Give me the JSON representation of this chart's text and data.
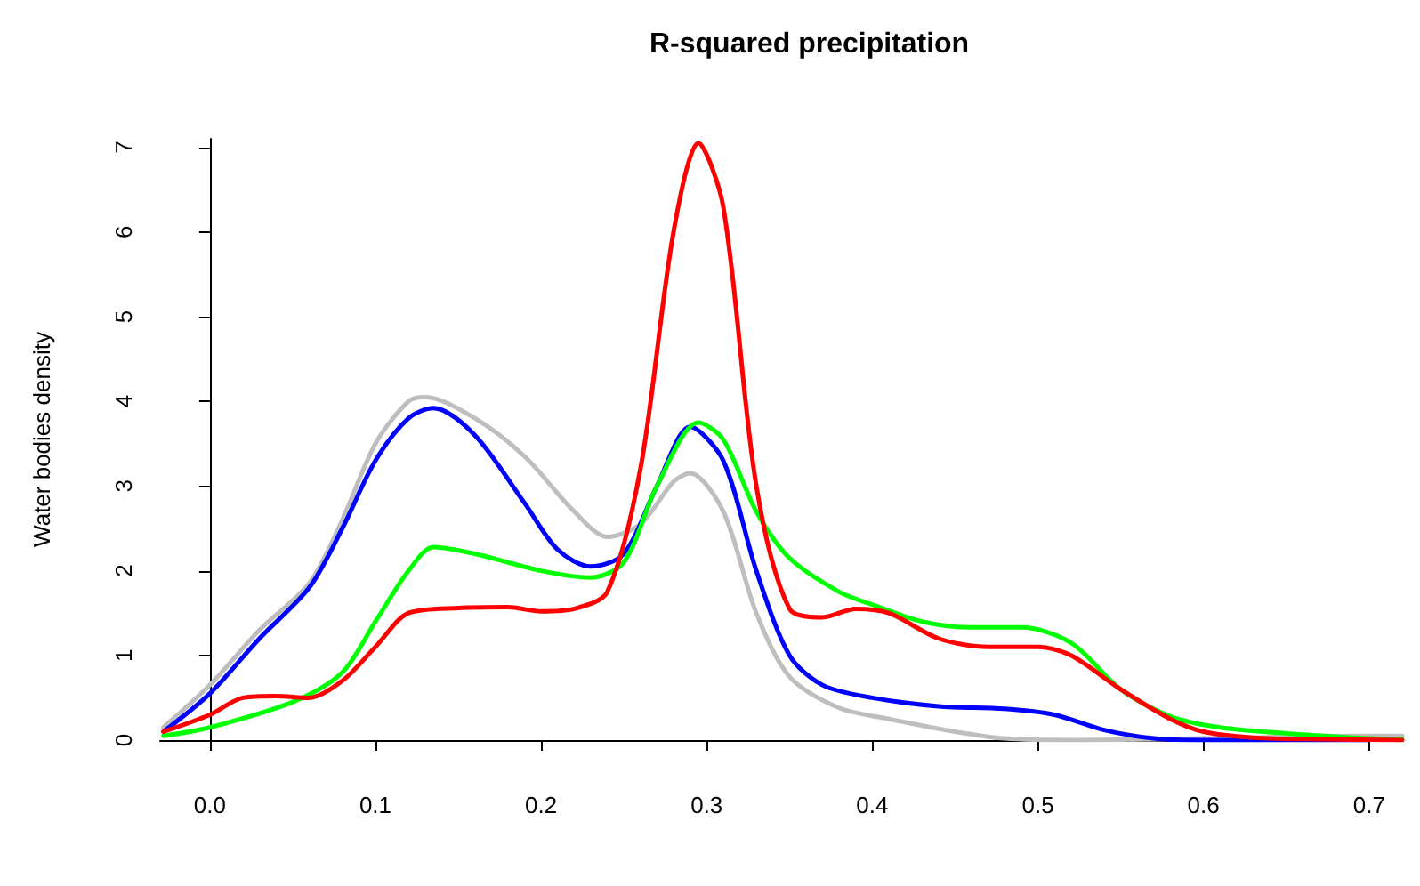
{
  "chart_data": {
    "type": "line",
    "title": "R-squared precipitation",
    "ylabel": "Water bodies density",
    "xlim": [
      -0.03,
      0.72
    ],
    "xticks": [
      {
        "value": 0,
        "label": "0.0"
      },
      0.1,
      0.2,
      0.3,
      0.4,
      0.5,
      0.6,
      0.7
    ],
    "ylim": [
      0,
      7.1
    ],
    "yticks": [
      0,
      1,
      2,
      3,
      4,
      5,
      6,
      7
    ],
    "marker": "none",
    "line_style": "solid",
    "series": [
      {
        "color": "#bebebe",
        "x": [
          -0.028,
          0.0,
          0.03,
          0.06,
          0.08,
          0.1,
          0.12,
          0.13,
          0.16,
          0.19,
          0.22,
          0.24,
          0.26,
          0.28,
          0.29,
          0.31,
          0.33,
          0.35,
          0.38,
          0.41,
          0.45,
          0.48,
          0.52,
          0.6,
          0.7,
          0.72
        ],
        "values": [
          0.15,
          0.65,
          1.3,
          1.85,
          2.6,
          3.5,
          4.0,
          4.05,
          3.8,
          3.35,
          2.7,
          2.4,
          2.55,
          3.05,
          3.15,
          2.7,
          1.5,
          0.75,
          0.38,
          0.25,
          0.1,
          0.02,
          0.0,
          0.02,
          0.05,
          0.05
        ]
      },
      {
        "color": "#0000ff",
        "x": [
          -0.028,
          0.0,
          0.03,
          0.06,
          0.08,
          0.1,
          0.12,
          0.135,
          0.16,
          0.19,
          0.21,
          0.23,
          0.25,
          0.27,
          0.29,
          0.31,
          0.33,
          0.35,
          0.37,
          0.4,
          0.44,
          0.48,
          0.51,
          0.54,
          0.57,
          0.6,
          0.65,
          0.7
        ],
        "values": [
          0.1,
          0.55,
          1.2,
          1.8,
          2.5,
          3.3,
          3.8,
          3.92,
          3.6,
          2.8,
          2.25,
          2.05,
          2.2,
          3.0,
          3.7,
          3.3,
          2.0,
          1.0,
          0.65,
          0.5,
          0.4,
          0.37,
          0.3,
          0.12,
          0.02,
          0.0,
          0.0,
          0.0
        ]
      },
      {
        "color": "#00ff00",
        "x": [
          -0.028,
          0.0,
          0.05,
          0.08,
          0.1,
          0.12,
          0.135,
          0.16,
          0.2,
          0.23,
          0.25,
          0.27,
          0.295,
          0.31,
          0.33,
          0.35,
          0.38,
          0.4,
          0.43,
          0.46,
          0.49,
          0.52,
          0.55,
          0.58,
          0.61,
          0.65,
          0.7,
          0.72
        ],
        "values": [
          0.05,
          0.15,
          0.45,
          0.8,
          1.4,
          2.0,
          2.28,
          2.2,
          2.0,
          1.92,
          2.1,
          3.0,
          3.75,
          3.55,
          2.7,
          2.15,
          1.75,
          1.6,
          1.4,
          1.33,
          1.33,
          1.15,
          0.6,
          0.28,
          0.15,
          0.08,
          0.02,
          0.01
        ]
      },
      {
        "color": "#ff0000",
        "x": [
          -0.028,
          0.0,
          0.02,
          0.04,
          0.06,
          0.08,
          0.1,
          0.12,
          0.15,
          0.18,
          0.2,
          0.22,
          0.24,
          0.26,
          0.28,
          0.295,
          0.31,
          0.33,
          0.35,
          0.37,
          0.39,
          0.41,
          0.44,
          0.47,
          0.5,
          0.52,
          0.55,
          0.58,
          0.6,
          0.63,
          0.67,
          0.72
        ],
        "values": [
          0.1,
          0.3,
          0.5,
          0.52,
          0.5,
          0.7,
          1.1,
          1.5,
          1.56,
          1.57,
          1.52,
          1.55,
          1.75,
          3.2,
          6.0,
          7.05,
          6.3,
          3.0,
          1.55,
          1.45,
          1.55,
          1.5,
          1.2,
          1.1,
          1.1,
          1.0,
          0.6,
          0.25,
          0.1,
          0.03,
          0.01,
          0.0
        ]
      }
    ]
  }
}
